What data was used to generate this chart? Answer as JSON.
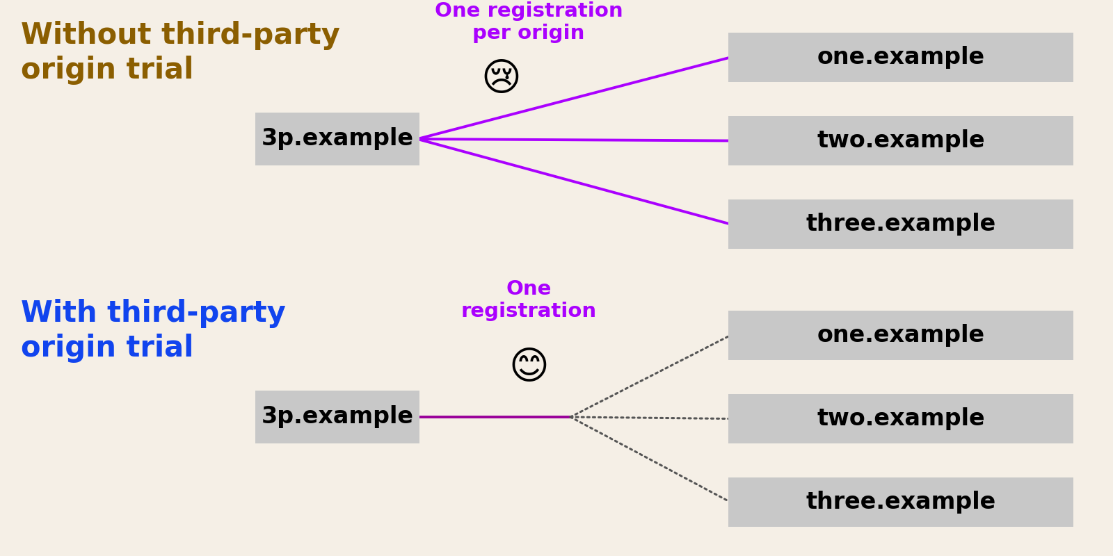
{
  "top_bg": "#F5EFE6",
  "bottom_bg": "#DDE8F8",
  "top_title": "Without third-party\norigin trial",
  "bottom_title": "With third-party\norigin trial",
  "top_title_color": "#8B5E00",
  "bottom_title_color": "#1144EE",
  "label_3p": "3p.example",
  "label_box_color": "#C8C8C8",
  "targets": [
    "one.example",
    "two.example",
    "three.example"
  ],
  "target_box_color": "#C8C8C8",
  "top_annotation": "One registration\nper origin",
  "bottom_annotation": "One\nregistration",
  "annotation_color": "#AA00FF",
  "line_color_top": "#AA00FF",
  "line_color_bottom": "#990099",
  "dot_color": "#555555"
}
